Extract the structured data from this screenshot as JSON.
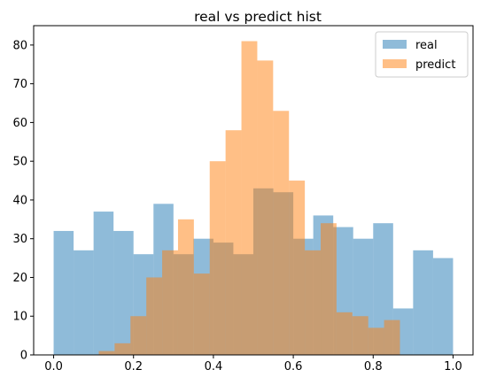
{
  "chart_data": {
    "type": "histogram",
    "title": "real vs predict hist",
    "xlabel": "",
    "ylabel": "",
    "xlim": [
      -0.05,
      1.05
    ],
    "ylim": [
      0,
      85
    ],
    "xticks": [
      0.0,
      0.2,
      0.4,
      0.6,
      0.8,
      1.0
    ],
    "xtick_labels": [
      "0.0",
      "0.2",
      "0.4",
      "0.6",
      "0.8",
      "1.0"
    ],
    "yticks": [
      0,
      10,
      20,
      30,
      40,
      50,
      60,
      70,
      80
    ],
    "ytick_labels": [
      "0",
      "10",
      "20",
      "30",
      "40",
      "50",
      "60",
      "70",
      "80"
    ],
    "grid": false,
    "legend_position": "top-right",
    "series": [
      {
        "name": "real",
        "color": "#1f77b4",
        "alpha": 0.5,
        "range": [
          0.0,
          1.0
        ],
        "counts": [
          32,
          27,
          37,
          32,
          26,
          39,
          26,
          30,
          29,
          26,
          43,
          42,
          30,
          36,
          33,
          30,
          34,
          12,
          27,
          25
        ]
      },
      {
        "name": "predict",
        "color": "#ff7f0e",
        "alpha": 0.5,
        "range": [
          0.113,
          0.867
        ],
        "counts": [
          1,
          3,
          10,
          20,
          27,
          35,
          21,
          50,
          58,
          81,
          76,
          63,
          45,
          27,
          34,
          11,
          10,
          7,
          9
        ]
      }
    ]
  }
}
